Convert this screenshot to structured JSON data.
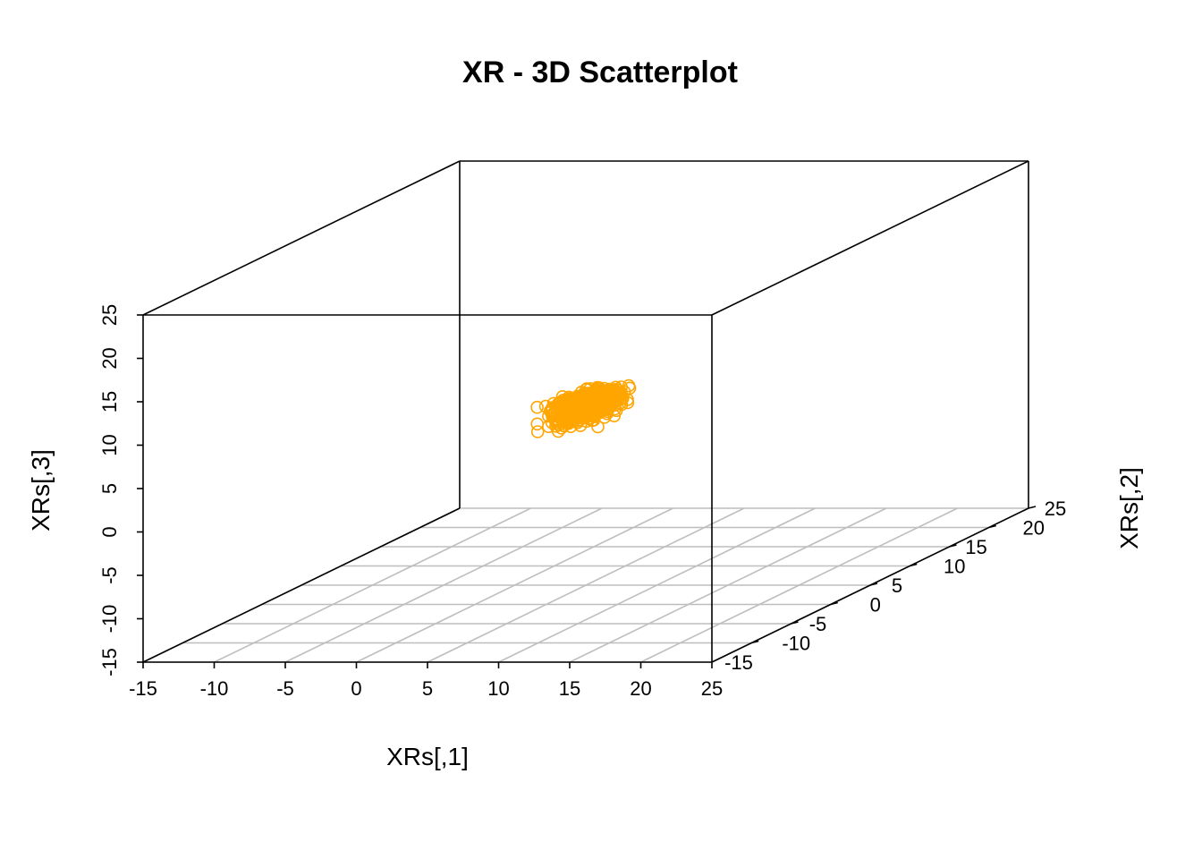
{
  "chart_data": {
    "type": "scatter",
    "title": "XR - 3D Scatterplot",
    "xlabel": "XRs[,1]",
    "ylabel": "XRs[,2]",
    "zlabel": "XRs[,3]",
    "xlim": [
      -15,
      25
    ],
    "ylim": [
      -15,
      25
    ],
    "zlim": [
      -15,
      25
    ],
    "x_ticks": [
      "-15",
      "-10",
      "-5",
      "0",
      "5",
      "10",
      "15",
      "20",
      "25"
    ],
    "y_ticks": [
      "-15",
      "-10",
      "-5",
      "0",
      "5",
      "10",
      "15",
      "20",
      "25"
    ],
    "z_ticks": [
      "-15",
      "-10",
      "-5",
      "0",
      "5",
      "10",
      "15",
      "20",
      "25"
    ],
    "grid": true,
    "point_color": "#FFA500",
    "box_color": "#000000",
    "grid_color": "#BEBEBE",
    "point_cloud": {
      "count": 1000,
      "x_mean": 5.6,
      "x_sd": 0.7,
      "y_mean": 4.2,
      "y_sd": 1.4,
      "z_mean": 6.0,
      "z_sd": 0.55
    }
  }
}
